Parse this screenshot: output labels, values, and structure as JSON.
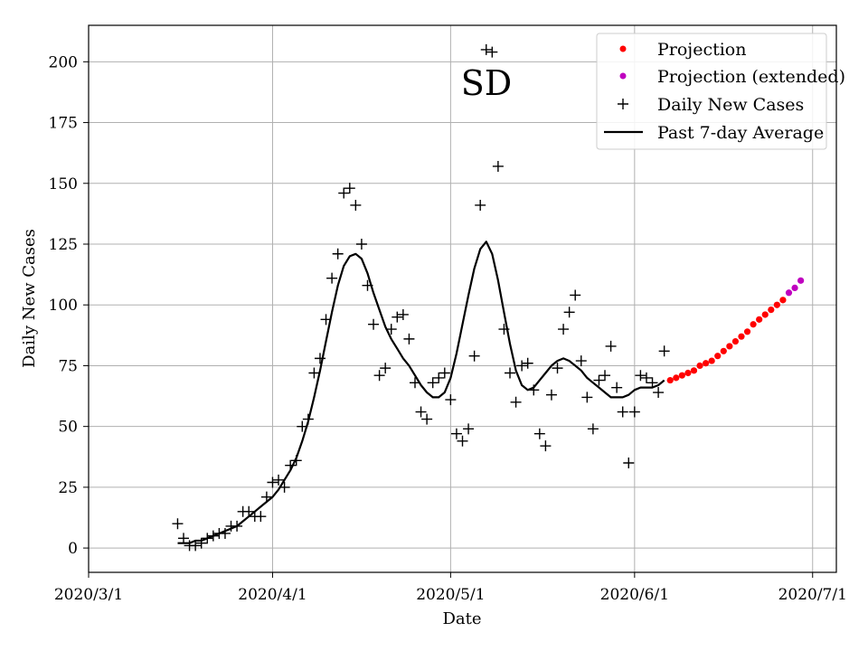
{
  "chart_data": {
    "type": "scatter",
    "title": "SD",
    "xlabel": "Date",
    "ylabel": "Daily New Cases",
    "x_tick_labels": [
      "2020/3/1",
      "2020/4/1",
      "2020/5/1",
      "2020/6/1",
      "2020/7/1"
    ],
    "x_tick_days": [
      0,
      31,
      61,
      92,
      122
    ],
    "xlim": [
      0,
      126
    ],
    "y_ticks": [
      0,
      25,
      50,
      75,
      100,
      125,
      150,
      175,
      200
    ],
    "ylim": [
      -10,
      215
    ],
    "grid": true,
    "legend_position": "top-right",
    "x_units": "days since 2020/3/1",
    "series": [
      {
        "name": "Projection",
        "kind": "dots",
        "color": "#ff0000",
        "x": [
          98,
          99,
          100,
          101,
          102,
          103,
          104,
          105,
          106,
          107,
          108,
          109,
          110,
          111,
          112,
          113,
          114,
          115,
          116,
          117
        ],
        "y": [
          69,
          70,
          71,
          72,
          73,
          75,
          76,
          77,
          79,
          81,
          83,
          85,
          87,
          89,
          92,
          94,
          96,
          98,
          100,
          102
        ]
      },
      {
        "name": "Projection (extended)",
        "kind": "dots",
        "color": "#bf00bf",
        "x": [
          118,
          119,
          120
        ],
        "y": [
          105,
          107,
          110
        ]
      },
      {
        "name": "Daily New Cases",
        "kind": "plus",
        "color": "#000000",
        "x": [
          15,
          16,
          17,
          18,
          19,
          20,
          21,
          22,
          23,
          24,
          25,
          26,
          27,
          28,
          29,
          30,
          31,
          32,
          33,
          34,
          35,
          36,
          37,
          38,
          39,
          40,
          41,
          42,
          43,
          44,
          45,
          46,
          47,
          48,
          49,
          50,
          51,
          52,
          53,
          54,
          55,
          56,
          57,
          58,
          59,
          60,
          61,
          62,
          63,
          64,
          65,
          66,
          67,
          68,
          69,
          70,
          71,
          72,
          73,
          74,
          75,
          76,
          77,
          78,
          79,
          80,
          81,
          82,
          83,
          84,
          85,
          86,
          87,
          88,
          89,
          90,
          91,
          92,
          93,
          94,
          95,
          96,
          97
        ],
        "y": [
          10,
          4,
          1,
          1,
          2,
          4,
          5,
          6,
          6,
          9,
          9,
          15,
          15,
          13,
          13,
          21,
          27,
          28,
          25,
          34,
          36,
          50,
          53,
          72,
          78,
          94,
          111,
          121,
          146,
          148,
          141,
          125,
          108,
          92,
          71,
          74,
          90,
          95,
          96,
          86,
          68,
          56,
          53,
          68,
          70,
          72,
          61,
          47,
          44,
          49,
          79,
          141,
          205,
          204,
          157,
          90,
          72,
          60,
          75,
          76,
          65,
          47,
          42,
          63,
          74,
          90,
          97,
          104,
          77,
          62,
          49,
          69,
          71,
          83,
          66,
          56,
          35,
          56,
          71,
          70,
          68,
          64,
          81
        ]
      },
      {
        "name": "Past 7-day Average",
        "kind": "line",
        "color": "#000000",
        "x": [
          15,
          16,
          17,
          18,
          19,
          20,
          21,
          22,
          23,
          24,
          25,
          26,
          27,
          28,
          29,
          30,
          31,
          32,
          33,
          34,
          35,
          36,
          37,
          38,
          39,
          40,
          41,
          42,
          43,
          44,
          45,
          46,
          47,
          48,
          49,
          50,
          51,
          52,
          53,
          54,
          55,
          56,
          57,
          58,
          59,
          60,
          61,
          62,
          63,
          64,
          65,
          66,
          67,
          68,
          69,
          70,
          71,
          72,
          73,
          74,
          75,
          76,
          77,
          78,
          79,
          80,
          81,
          82,
          83,
          84,
          85,
          86,
          87,
          88,
          89,
          90,
          91,
          92,
          93,
          94,
          95,
          96,
          97
        ],
        "y": [
          2,
          2,
          2,
          3,
          3,
          4,
          5,
          6,
          7,
          8,
          9,
          11,
          13,
          15,
          17,
          19,
          21,
          24,
          28,
          32,
          37,
          44,
          52,
          62,
          73,
          85,
          97,
          108,
          116,
          120,
          121,
          119,
          113,
          105,
          98,
          91,
          86,
          82,
          78,
          75,
          71,
          67,
          64,
          62,
          62,
          64,
          70,
          80,
          92,
          104,
          115,
          123,
          126,
          121,
          110,
          97,
          84,
          73,
          67,
          65,
          66,
          69,
          72,
          75,
          77,
          78,
          77,
          75,
          73,
          70,
          68,
          66,
          64,
          62,
          62,
          62,
          63,
          65,
          66,
          66,
          66,
          67,
          69
        ]
      }
    ]
  }
}
